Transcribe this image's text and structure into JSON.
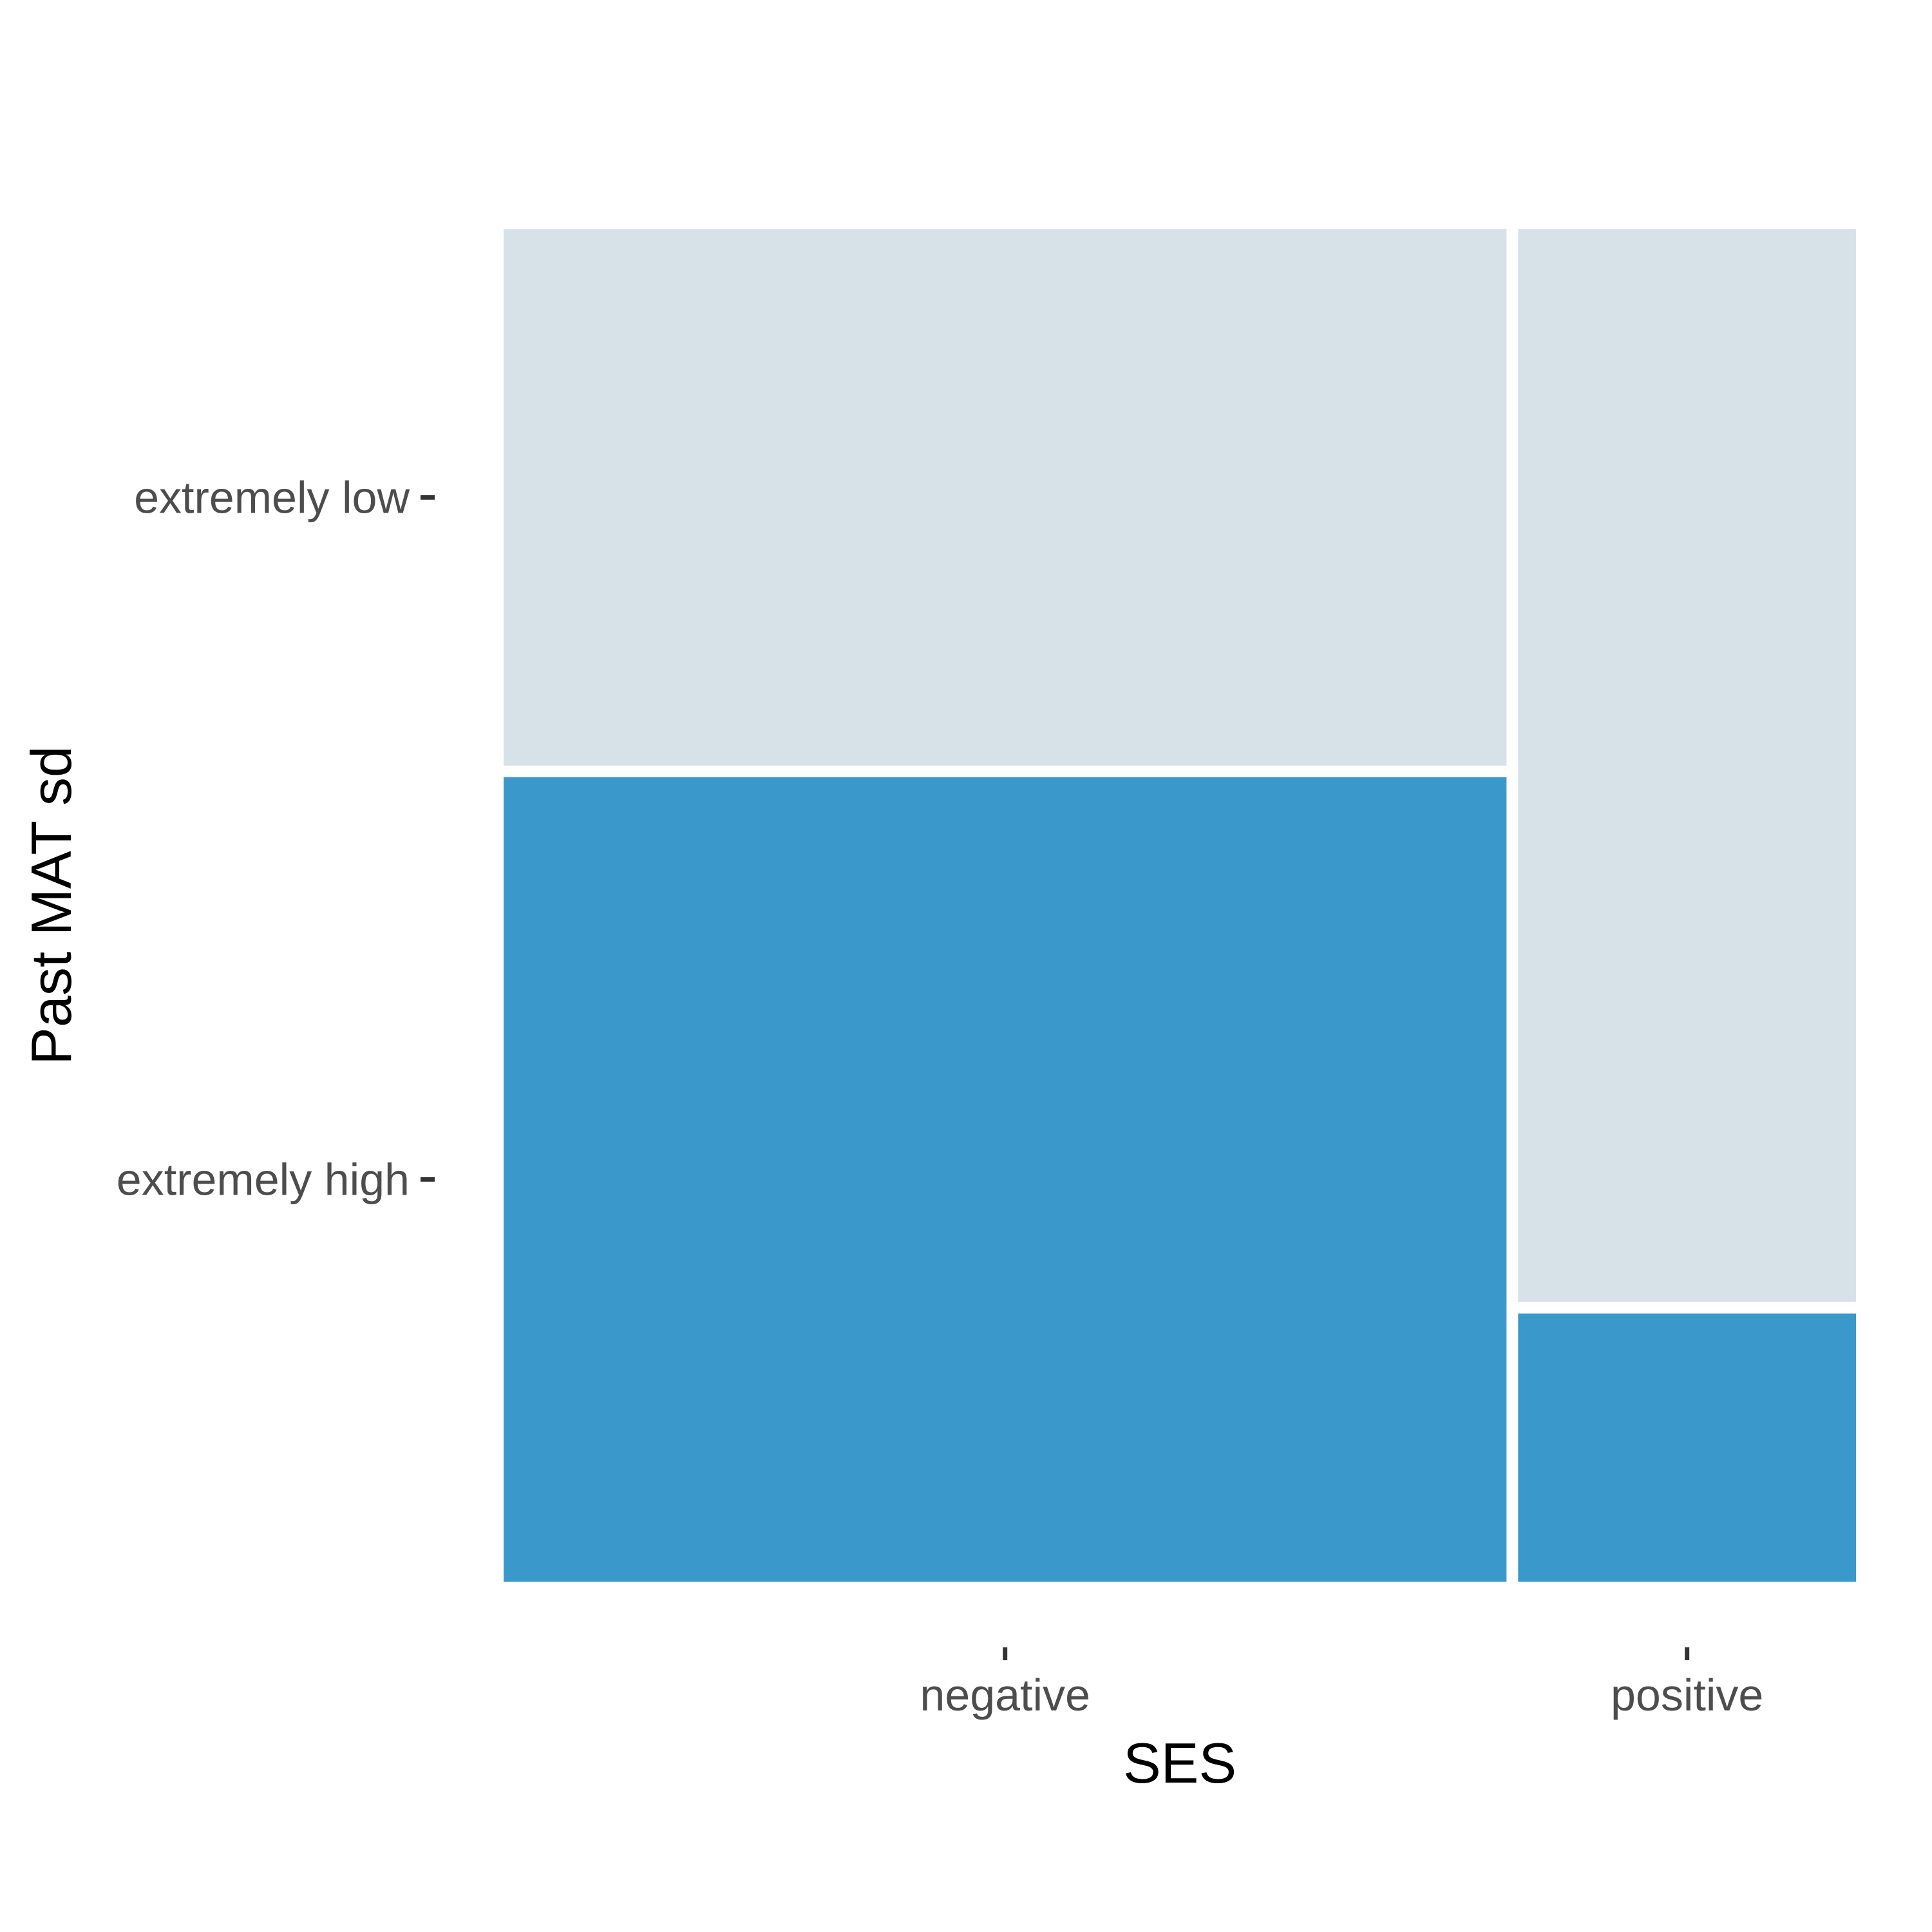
{
  "chart_data": {
    "type": "mosaic",
    "xlabel": "SES",
    "ylabel": "Past MAT sd",
    "x_categories": [
      "negative",
      "positive"
    ],
    "y_categories": [
      "extremely low",
      "extremely high"
    ],
    "column_shares": [
      0.748,
      0.252
    ],
    "cells": [
      {
        "x": "negative",
        "y": "extremely low",
        "share": 0.4
      },
      {
        "x": "negative",
        "y": "extremely high",
        "share": 0.6
      },
      {
        "x": "positive",
        "y": "extremely low",
        "share": 0.8
      },
      {
        "x": "positive",
        "y": "extremely high",
        "share": 0.2
      }
    ],
    "colors": {
      "extremely low": "#d7e1e8",
      "extremely high": "#3b98ca"
    },
    "grid": false
  }
}
